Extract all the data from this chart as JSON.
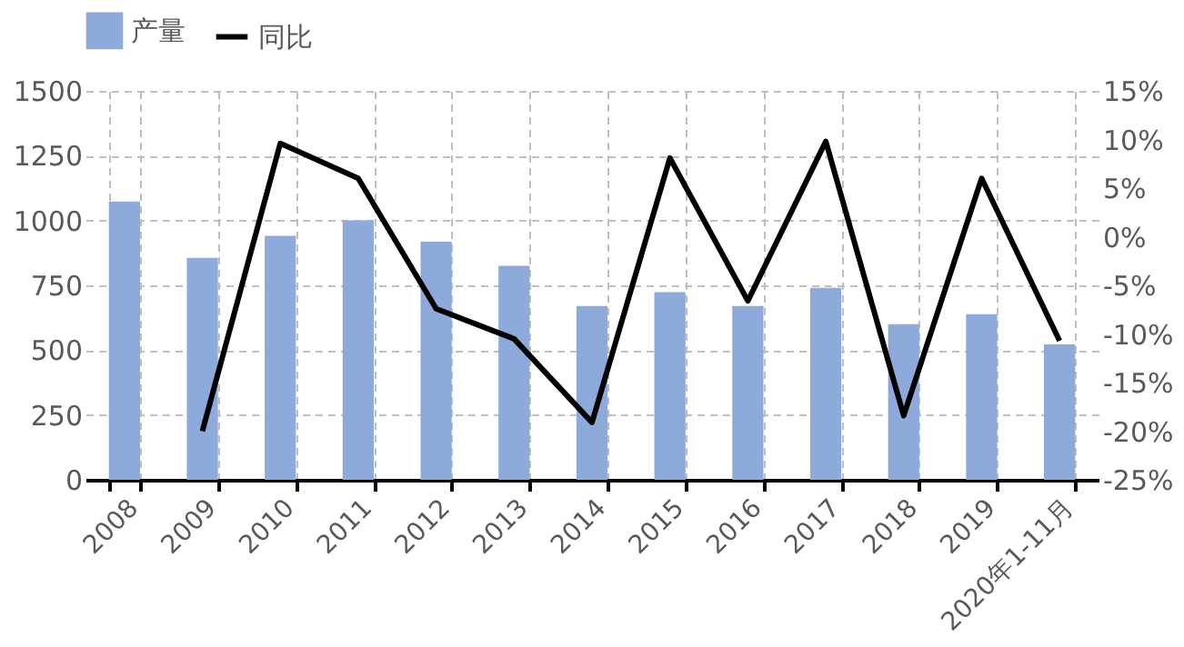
{
  "chart_data": {
    "type": "bar",
    "categories": [
      "2008",
      "2009",
      "2010",
      "2011",
      "2012",
      "2013",
      "2014",
      "2015",
      "2016",
      "2017",
      "2018",
      "2019",
      "2020年1-11月"
    ],
    "series": [
      {
        "name": "产量",
        "color": "#8eaadb",
        "values": [
          1073,
          856,
          941,
          1001,
          918,
          825,
          670,
          724,
          670,
          740,
          600,
          639,
          522
        ]
      },
      {
        "name": "同比",
        "type": "line",
        "axis": "y2",
        "color": "#000000",
        "values": [
          null,
          -20.0,
          9.6,
          6.0,
          -7.4,
          -10.5,
          -19.1,
          8.1,
          -6.6,
          9.8,
          -18.4,
          6.0,
          -10.7
        ]
      }
    ],
    "ylim": [
      0,
      1500
    ],
    "yticks": [
      0,
      250,
      500,
      750,
      1000,
      1250,
      1500
    ],
    "y2lim": [
      -25,
      15
    ],
    "y2ticks": [
      {
        "value": 15,
        "label": "15%"
      },
      {
        "value": 10,
        "label": "10%"
      },
      {
        "value": 5,
        "label": "5%"
      },
      {
        "value": 0,
        "label": "0%"
      },
      {
        "value": -5,
        "label": "-5%"
      },
      {
        "value": -10,
        "label": "-10%"
      },
      {
        "value": -15,
        "label": "-15%"
      },
      {
        "value": -20,
        "label": "-20%"
      },
      {
        "value": -25,
        "label": "-25%"
      }
    ],
    "grid": true,
    "legend": "top",
    "line_style": "solid",
    "marker": "none"
  }
}
